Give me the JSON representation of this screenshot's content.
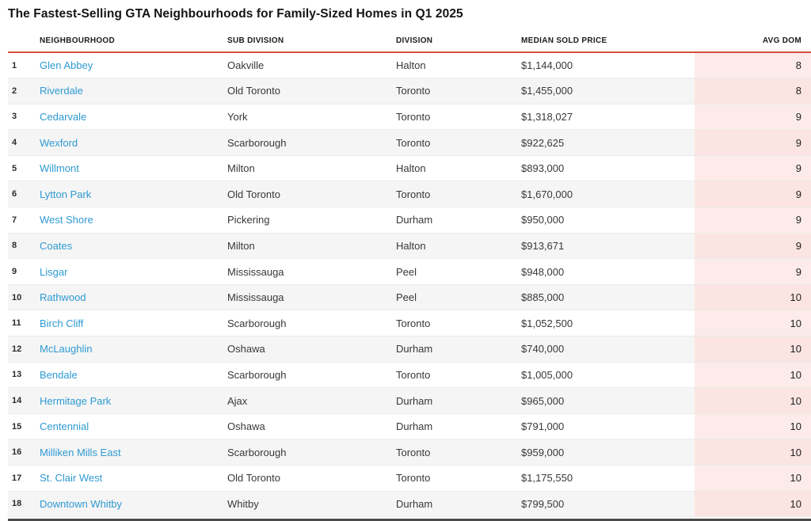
{
  "title": "The Fastest-Selling GTA Neighbourhoods for Family-Sized Homes in Q1 2025",
  "colors": {
    "accent_red": "#d6503e",
    "link_blue": "#2e9ad2",
    "dom_column_pink": "#fbe8e5",
    "row_alt_gray": "#f5f5f5"
  },
  "chart_data": {
    "type": "table",
    "title": "The Fastest-Selling GTA Neighbourhoods for Family-Sized Homes in Q1 2025",
    "columns": [
      "NEIGHBOURHOOD",
      "SUB DIVISION",
      "DIVISION",
      "MEDIAN SOLD PRICE",
      "AVG DOM"
    ],
    "rows": [
      {
        "rank": "1",
        "neighbourhood": "Glen Abbey",
        "sub_division": "Oakville",
        "division": "Halton",
        "median_sold_price": "$1,144,000",
        "avg_dom": "8"
      },
      {
        "rank": "2",
        "neighbourhood": "Riverdale",
        "sub_division": "Old Toronto",
        "division": "Toronto",
        "median_sold_price": "$1,455,000",
        "avg_dom": "8"
      },
      {
        "rank": "3",
        "neighbourhood": "Cedarvale",
        "sub_division": "York",
        "division": "Toronto",
        "median_sold_price": "$1,318,027",
        "avg_dom": "9"
      },
      {
        "rank": "4",
        "neighbourhood": "Wexford",
        "sub_division": "Scarborough",
        "division": "Toronto",
        "median_sold_price": "$922,625",
        "avg_dom": "9"
      },
      {
        "rank": "5",
        "neighbourhood": "Willmont",
        "sub_division": "Milton",
        "division": "Halton",
        "median_sold_price": "$893,000",
        "avg_dom": "9"
      },
      {
        "rank": "6",
        "neighbourhood": "Lytton Park",
        "sub_division": "Old Toronto",
        "division": "Toronto",
        "median_sold_price": "$1,670,000",
        "avg_dom": "9"
      },
      {
        "rank": "7",
        "neighbourhood": "West Shore",
        "sub_division": "Pickering",
        "division": "Durham",
        "median_sold_price": "$950,000",
        "avg_dom": "9"
      },
      {
        "rank": "8",
        "neighbourhood": "Coates",
        "sub_division": "Milton",
        "division": "Halton",
        "median_sold_price": "$913,671",
        "avg_dom": "9"
      },
      {
        "rank": "9",
        "neighbourhood": "Lisgar",
        "sub_division": "Mississauga",
        "division": "Peel",
        "median_sold_price": "$948,000",
        "avg_dom": "9"
      },
      {
        "rank": "10",
        "neighbourhood": "Rathwood",
        "sub_division": "Mississauga",
        "division": "Peel",
        "median_sold_price": "$885,000",
        "avg_dom": "10"
      },
      {
        "rank": "11",
        "neighbourhood": "Birch Cliff",
        "sub_division": "Scarborough",
        "division": "Toronto",
        "median_sold_price": "$1,052,500",
        "avg_dom": "10"
      },
      {
        "rank": "12",
        "neighbourhood": "McLaughlin",
        "sub_division": "Oshawa",
        "division": "Durham",
        "median_sold_price": "$740,000",
        "avg_dom": "10"
      },
      {
        "rank": "13",
        "neighbourhood": "Bendale",
        "sub_division": "Scarborough",
        "division": "Toronto",
        "median_sold_price": "$1,005,000",
        "avg_dom": "10"
      },
      {
        "rank": "14",
        "neighbourhood": "Hermitage Park",
        "sub_division": "Ajax",
        "division": "Durham",
        "median_sold_price": "$965,000",
        "avg_dom": "10"
      },
      {
        "rank": "15",
        "neighbourhood": "Centennial",
        "sub_division": "Oshawa",
        "division": "Durham",
        "median_sold_price": "$791,000",
        "avg_dom": "10"
      },
      {
        "rank": "16",
        "neighbourhood": "Milliken Mills East",
        "sub_division": "Scarborough",
        "division": "Toronto",
        "median_sold_price": "$959,000",
        "avg_dom": "10"
      },
      {
        "rank": "17",
        "neighbourhood": "St. Clair West",
        "sub_division": "Old Toronto",
        "division": "Toronto",
        "median_sold_price": "$1,175,550",
        "avg_dom": "10"
      },
      {
        "rank": "18",
        "neighbourhood": "Downtown Whitby",
        "sub_division": "Whitby",
        "division": "Durham",
        "median_sold_price": "$799,500",
        "avg_dom": "10"
      }
    ]
  }
}
